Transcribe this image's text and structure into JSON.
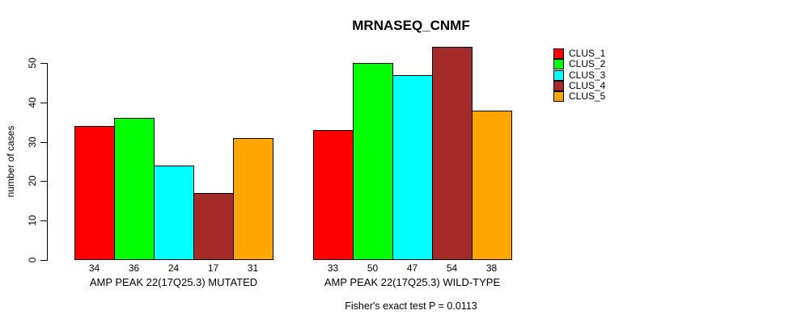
{
  "title": "MRNASEQ_CNMF",
  "chart_data": {
    "type": "bar",
    "title": "MRNASEQ_CNMF",
    "xlabel": "",
    "ylabel": "number of cases",
    "ylim": [
      0,
      50
    ],
    "yticks": [
      0,
      10,
      20,
      30,
      40,
      50
    ],
    "grid": false,
    "legend_position": "top-right",
    "bar_border_color": "#000000",
    "background_color": "#ffffff",
    "categories": [
      "AMP PEAK 22(17Q25.3) MUTATED",
      "AMP PEAK 22(17Q25.3) WILD-TYPE"
    ],
    "series": [
      {
        "name": "CLUS_1",
        "color": "#ff0000",
        "values": [
          34,
          33
        ]
      },
      {
        "name": "CLUS_2",
        "color": "#00ff00",
        "values": [
          36,
          50
        ]
      },
      {
        "name": "CLUS_3",
        "color": "#00ffff",
        "values": [
          24,
          47
        ]
      },
      {
        "name": "CLUS_4",
        "color": "#a52a2a",
        "values": [
          17,
          54
        ]
      },
      {
        "name": "CLUS_5",
        "color": "#ffa500",
        "values": [
          31,
          38
        ]
      }
    ],
    "bar_value_labels": [
      [
        34,
        36,
        24,
        17,
        31
      ],
      [
        33,
        50,
        47,
        54,
        38
      ]
    ],
    "annotation": "Fisher's exact test P = 0.0113"
  }
}
